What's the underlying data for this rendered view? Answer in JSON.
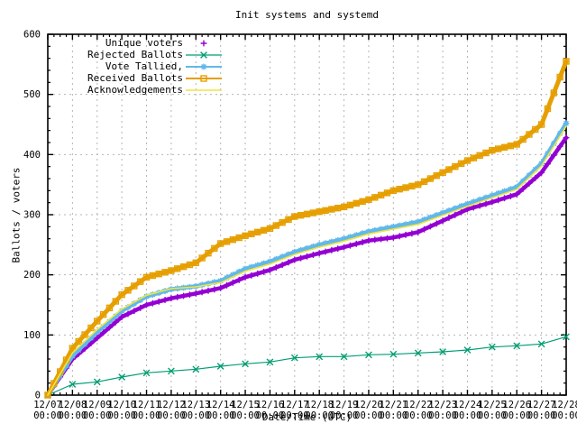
{
  "chart_data": {
    "type": "line",
    "title": "Init systems and systemd",
    "xlabel": "Date/Time (UTC)",
    "ylabel": "Ballots / voters",
    "ylim": [
      0,
      600
    ],
    "y_ticks": [
      0,
      100,
      200,
      300,
      400,
      500,
      600
    ],
    "grid": true,
    "legend_position": "top-left-inside",
    "x_tick_dates": [
      "12/07",
      "12/08",
      "12/09",
      "12/10",
      "12/11",
      "12/12",
      "12/13",
      "12/14",
      "12/15",
      "12/16",
      "12/17",
      "12/18",
      "12/19",
      "12/20",
      "12/21",
      "12/22",
      "12/23",
      "12/24",
      "12/25",
      "12/26",
      "12/27",
      "12/28"
    ],
    "x_tick_time": "00:00",
    "series": [
      {
        "name": "Unique voters",
        "color": "#9400d3",
        "marker": "plus",
        "legend_line": false,
        "thickness": 4.5,
        "values": [
          0,
          60,
          95,
          130,
          150,
          161,
          169,
          178,
          196,
          208,
          225,
          236,
          246,
          257,
          262,
          271,
          290,
          309,
          321,
          334,
          370,
          428
        ]
      },
      {
        "name": "Rejected Ballots",
        "color": "#009e73",
        "marker": "cross",
        "legend_line": true,
        "thickness": 1.2,
        "values": [
          0,
          18,
          22,
          30,
          37,
          40,
          43,
          48,
          52,
          55,
          62,
          64,
          64,
          67,
          68,
          70,
          72,
          75,
          80,
          82,
          85,
          97
        ]
      },
      {
        "name": "Vote Tallied,",
        "color": "#61b8ea",
        "marker": "asterisk",
        "legend_line": true,
        "thickness": 4.5,
        "values": [
          0,
          65,
          105,
          140,
          164,
          176,
          181,
          190,
          210,
          222,
          238,
          250,
          260,
          272,
          280,
          288,
          303,
          318,
          332,
          346,
          385,
          452
        ]
      },
      {
        "name": "Received Ballots",
        "color": "#e69f00",
        "marker": "square",
        "legend_line": true,
        "thickness": 5,
        "values": [
          0,
          78,
          123,
          167,
          196,
          207,
          220,
          252,
          265,
          277,
          297,
          305,
          313,
          325,
          340,
          350,
          370,
          390,
          407,
          417,
          450,
          555
        ]
      },
      {
        "name": "Acknowledgements",
        "color": "#f0e442",
        "marker": "none",
        "legend_line": true,
        "thickness": 1.6,
        "values": [
          0,
          70,
          109,
          143,
          166,
          177,
          180,
          187,
          206,
          218,
          234,
          246,
          256,
          268,
          276,
          284,
          299,
          314,
          328,
          342,
          381,
          447
        ]
      }
    ]
  }
}
